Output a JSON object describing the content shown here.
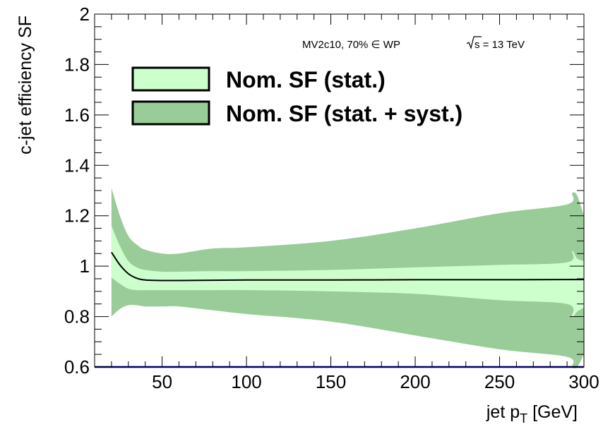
{
  "chart_data": {
    "type": "area",
    "xlabel_main": "jet p",
    "xlabel_sub": "T",
    "xlabel_unit": " [GeV]",
    "ylabel": "c-jet efficiency SF",
    "xlim": [
      10,
      300
    ],
    "ylim": [
      0.6,
      2.0
    ],
    "x_ticks": [
      50,
      100,
      150,
      200,
      250,
      300
    ],
    "x_tick_labels": [
      "50",
      "100",
      "150",
      "200",
      "250",
      "300"
    ],
    "y_ticks": [
      0.6,
      0.8,
      1.0,
      1.2,
      1.4,
      1.6,
      1.8,
      2.0
    ],
    "y_tick_labels": [
      "0.6",
      "0.8",
      "1",
      "1.2",
      "1.4",
      "1.6",
      "1.8",
      "2"
    ],
    "annotations": {
      "working_point": "MV2c10, 70% ∈ WP",
      "energy_sqrt": "s",
      "energy_value": " = 13 TeV"
    },
    "legend": [
      {
        "label": "Nom. SF (stat.)",
        "color": "#ccffcc"
      },
      {
        "label": "Nom. SF (stat. + syst.)",
        "color": "#99cc99"
      }
    ],
    "colors": {
      "stat_band": "#ccffcc",
      "syst_band": "#99cc99",
      "nominal_line": "#000000",
      "bottom_axis": "#000066"
    },
    "x": [
      20,
      25,
      30,
      35,
      40,
      50,
      60,
      80,
      100,
      150,
      200,
      250,
      290,
      293,
      296,
      300
    ],
    "nominal": [
      1.055,
      1.005,
      0.97,
      0.952,
      0.945,
      0.943,
      0.943,
      0.944,
      0.945,
      0.945,
      0.946,
      0.946,
      0.947,
      0.947,
      0.947,
      0.947
    ],
    "stat_upper": [
      1.16,
      1.08,
      1.02,
      0.995,
      0.985,
      0.978,
      0.978,
      0.98,
      0.98,
      0.985,
      0.995,
      1.005,
      1.015,
      1.06,
      1.03,
      1.02
    ],
    "stat_lower": [
      0.955,
      0.93,
      0.91,
      0.905,
      0.905,
      0.905,
      0.905,
      0.905,
      0.905,
      0.9,
      0.89,
      0.865,
      0.85,
      0.8,
      0.82,
      0.835
    ],
    "syst_upper": [
      1.31,
      1.2,
      1.12,
      1.085,
      1.065,
      1.05,
      1.05,
      1.07,
      1.075,
      1.1,
      1.15,
      1.21,
      1.245,
      1.29,
      1.28,
      1.2
    ],
    "syst_lower": [
      0.8,
      0.83,
      0.845,
      0.845,
      0.84,
      0.84,
      0.84,
      0.825,
      0.81,
      0.78,
      0.725,
      0.67,
      0.64,
      0.6,
      0.6,
      0.65
    ]
  }
}
